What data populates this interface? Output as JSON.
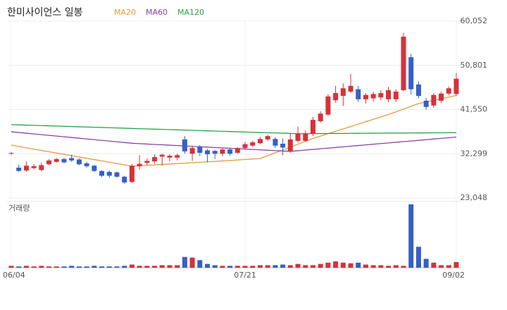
{
  "chart_data": {
    "type": "candlestick",
    "title": "한미사이언스 일봉",
    "categories": [
      "06/04",
      null,
      null,
      null,
      null,
      null,
      null,
      null,
      null,
      null,
      null,
      null,
      null,
      null,
      null,
      null,
      null,
      null,
      null,
      null,
      null,
      null,
      null,
      null,
      null,
      null,
      null,
      null,
      null,
      null,
      null,
      "07/21",
      null,
      null,
      null,
      null,
      null,
      null,
      null,
      null,
      null,
      null,
      null,
      null,
      null,
      null,
      null,
      null,
      null,
      null,
      null,
      null,
      null,
      null,
      null,
      null,
      null,
      null,
      null,
      "09/02"
    ],
    "open": [
      32300,
      29400,
      28800,
      29300,
      28900,
      30100,
      30600,
      31200,
      31400,
      31100,
      30300,
      29800,
      28700,
      28500,
      28400,
      27500,
      26400,
      29700,
      30400,
      30700,
      31700,
      31500,
      31500,
      35300,
      32300,
      33700,
      33000,
      32900,
      32300,
      33200,
      32500,
      33500,
      34000,
      34500,
      35300,
      35400,
      34400,
      32800,
      35000,
      35000,
      36500,
      39100,
      40500,
      43500,
      44400,
      45300,
      45800,
      43700,
      43900,
      44100,
      43700,
      43700,
      45600,
      52500,
      46800,
      43400,
      42400,
      43400,
      44900,
      44800
    ],
    "high": [
      32700,
      30000,
      30700,
      30200,
      30500,
      31200,
      31400,
      31500,
      32100,
      31300,
      30600,
      30000,
      28900,
      28800,
      28600,
      27700,
      30100,
      32000,
      31300,
      32200,
      32300,
      32200,
      32300,
      36000,
      34000,
      34100,
      33300,
      33100,
      33500,
      33600,
      33700,
      34800,
      35000,
      35800,
      36300,
      35800,
      35500,
      36500,
      38000,
      37200,
      40000,
      41200,
      44800,
      46500,
      47000,
      49000,
      46500,
      45000,
      45300,
      45600,
      46300,
      45800,
      57600,
      53200,
      47500,
      44000,
      45000,
      45300,
      46400,
      49200
    ],
    "low": [
      32100,
      28500,
      28500,
      29000,
      28600,
      29900,
      30400,
      30300,
      30600,
      29900,
      29400,
      28500,
      27400,
      27300,
      27300,
      26000,
      26200,
      29000,
      29900,
      30200,
      29800,
      30700,
      30900,
      32300,
      30800,
      31800,
      30500,
      31200,
      31800,
      31900,
      32300,
      33200,
      33700,
      34300,
      35000,
      33500,
      32000,
      32500,
      34600,
      34800,
      36000,
      38800,
      40200,
      43000,
      42300,
      45000,
      43200,
      42800,
      43200,
      43500,
      43100,
      43100,
      45400,
      44700,
      43900,
      41500,
      41900,
      42900,
      44500,
      44400
    ],
    "close": [
      32450,
      28700,
      29800,
      29700,
      29900,
      30900,
      31200,
      30500,
      30900,
      30100,
      29700,
      28700,
      27700,
      27700,
      27500,
      26300,
      29800,
      30200,
      30800,
      31600,
      32100,
      31900,
      32000,
      32800,
      33500,
      32500,
      32200,
      32300,
      33200,
      32300,
      33500,
      34300,
      34700,
      35400,
      36000,
      34000,
      33600,
      35300,
      36500,
      36500,
      39400,
      40700,
      44300,
      45000,
      46000,
      46500,
      43700,
      44600,
      44800,
      45000,
      45600,
      45300,
      56800,
      45800,
      44400,
      42100,
      44600,
      44900,
      46000,
      48000
    ],
    "series": [
      {
        "name": "MA20",
        "color": "#e39a3f",
        "values": [
          34100,
          33825,
          33550,
          33275,
          33000,
          32725,
          32450,
          32175,
          31900,
          31625,
          31350,
          31075,
          30800,
          30525,
          30250,
          29975,
          29700,
          29790,
          29880,
          29970,
          30060,
          30150,
          30240,
          30330,
          30420,
          30510,
          30600,
          30700,
          30800,
          30900,
          31000,
          31100,
          31200,
          31300,
          31900,
          32500,
          33100,
          33700,
          34300,
          34900,
          35500,
          36000,
          36500,
          37000,
          37500,
          38000,
          38500,
          39000,
          39500,
          40000,
          40500,
          41075,
          41650,
          42225,
          42800,
          43140,
          43480,
          43820,
          44160,
          44500
        ]
      },
      {
        "name": "MA60",
        "color": "#9042a8",
        "values": [
          36900,
          36750,
          36600,
          36450,
          36300,
          36150,
          36000,
          35850,
          35700,
          35550,
          35400,
          35250,
          35100,
          34950,
          34800,
          34650,
          34500,
          34419,
          34338,
          34257,
          34176,
          34095,
          34014,
          33933,
          33852,
          33771,
          33690,
          33609,
          33528,
          33447,
          33366,
          33285,
          33204,
          33123,
          33042,
          32961,
          32880,
          32800,
          32936,
          33072,
          33208,
          33344,
          33480,
          33616,
          33752,
          33888,
          34024,
          34160,
          34296,
          34432,
          34568,
          34704,
          34840,
          34976,
          35112,
          35248,
          35384,
          35520,
          35656,
          35800
        ]
      },
      {
        "name": "MA120",
        "color": "#2aa24a",
        "values": [
          38400,
          38350,
          38300,
          38250,
          38200,
          38150,
          38100,
          38050,
          38000,
          37950,
          37900,
          37850,
          37800,
          37750,
          37700,
          37650,
          37600,
          37550,
          37500,
          37450,
          37400,
          37350,
          37300,
          37250,
          37200,
          37150,
          37100,
          37050,
          37000,
          36950,
          36900,
          36850,
          36800,
          36750,
          36700,
          36650,
          36600,
          36550,
          36500,
          36510,
          36520,
          36530,
          36540,
          36550,
          36560,
          36570,
          36580,
          36590,
          36600,
          36610,
          36620,
          36630,
          36640,
          36650,
          36660,
          36670,
          36680,
          36690,
          36700,
          36710
        ]
      }
    ],
    "volume_label": "거래량",
    "volume": [
      3,
      2,
      3,
      2,
      3,
      2,
      2,
      2,
      3,
      2,
      2,
      3,
      2,
      2,
      2,
      3,
      5,
      3,
      3,
      3,
      4,
      4,
      4,
      17,
      16,
      12,
      6,
      4,
      3,
      3,
      3,
      3,
      3,
      4,
      4,
      4,
      5,
      4,
      6,
      4,
      4,
      6,
      8,
      10,
      8,
      7,
      8,
      5,
      4,
      4,
      3,
      4,
      3,
      100,
      33,
      14,
      8,
      4,
      4,
      9
    ],
    "up_color": "#d7313a",
    "down_color": "#3560c4",
    "ylim": [
      23048,
      60052
    ],
    "yticks": [
      {
        "value": 23048,
        "label": "23,048"
      },
      {
        "value": 32299,
        "label": "32,299"
      },
      {
        "value": 41550,
        "label": "41,550"
      },
      {
        "value": 50801,
        "label": "50,801"
      },
      {
        "value": 60052,
        "label": "60,052"
      }
    ],
    "grid": true
  }
}
